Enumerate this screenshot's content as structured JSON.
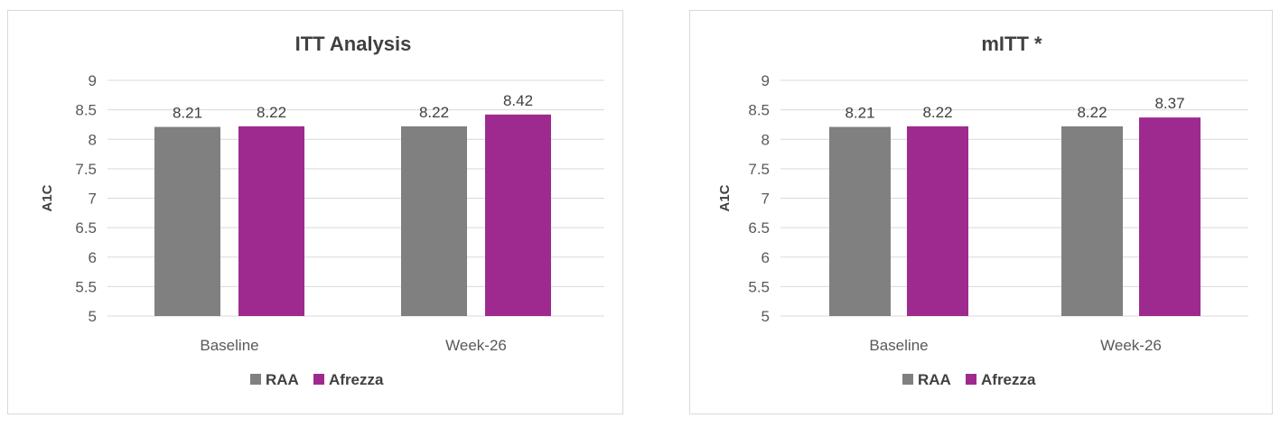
{
  "chart_data": [
    {
      "type": "bar",
      "title": "ITT Analysis",
      "categories": [
        "Baseline",
        "Week-26"
      ],
      "series": [
        {
          "name": "RAA",
          "color": "#808080",
          "values": [
            8.21,
            8.22
          ]
        },
        {
          "name": "Afrezza",
          "color": "#9e2a8f",
          "values": [
            8.22,
            8.42
          ]
        }
      ],
      "data_labels": [
        [
          "8.21",
          "8.22"
        ],
        [
          "8.22",
          "8.42"
        ]
      ],
      "xlabel": "",
      "ylabel": "A1C",
      "ylim": [
        5,
        9
      ],
      "yticks": [
        "5",
        "5.5",
        "6",
        "6.5",
        "7",
        "7.5",
        "8",
        "8.5",
        "9"
      ],
      "grid": true,
      "legend": "bottom"
    },
    {
      "type": "bar",
      "title": "mITT *",
      "categories": [
        "Baseline",
        "Week-26"
      ],
      "series": [
        {
          "name": "RAA",
          "color": "#808080",
          "values": [
            8.21,
            8.22
          ]
        },
        {
          "name": "Afrezza",
          "color": "#9e2a8f",
          "values": [
            8.22,
            8.37
          ]
        }
      ],
      "data_labels": [
        [
          "8.21",
          "8.22"
        ],
        [
          "8.22",
          "8.37"
        ]
      ],
      "xlabel": "",
      "ylabel": "A1C",
      "ylim": [
        5,
        9
      ],
      "yticks": [
        "5",
        "5.5",
        "6",
        "6.5",
        "7",
        "7.5",
        "8",
        "8.5",
        "9"
      ],
      "grid": true,
      "legend": "bottom"
    }
  ]
}
